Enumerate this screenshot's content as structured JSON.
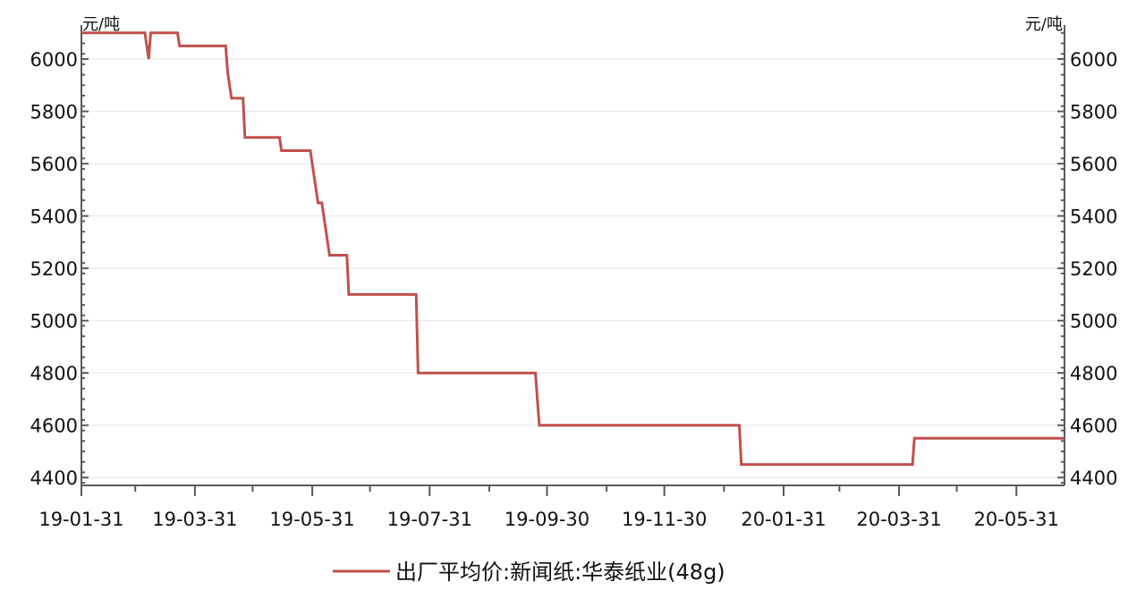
{
  "chart_data": {
    "type": "line",
    "step": true,
    "unit_left": "元/吨",
    "unit_right": "元/吨",
    "ylim": [
      4370,
      6130
    ],
    "y_ticks": [
      4400,
      4600,
      4800,
      5000,
      5200,
      5400,
      5600,
      5800,
      6000
    ],
    "y_tick_labels": [
      "4400",
      "4600",
      "4800",
      "5000",
      "5200",
      "5400",
      "5600",
      "5800",
      "6000"
    ],
    "xlim": [
      "2019-01-31",
      "2020-06-25"
    ],
    "x_ticks": [
      "2019-01-31",
      "2019-03-31",
      "2019-05-31",
      "2019-07-31",
      "2019-09-30",
      "2019-11-30",
      "2020-01-31",
      "2020-03-31",
      "2020-05-31"
    ],
    "x_tick_labels": [
      "19-01-31",
      "19-03-31",
      "19-05-31",
      "19-07-31",
      "19-09-30",
      "19-11-30",
      "20-01-31",
      "20-03-31",
      "20-05-31"
    ],
    "grid": {
      "horizontal": true,
      "vertical": false
    },
    "legend_position": "bottom-center",
    "series": [
      {
        "name": "出厂平均价:新闻纸:华泰纸业(48g)",
        "color": "#c0504d",
        "points": [
          [
            "2019-01-31",
            6100
          ],
          [
            "2019-03-05",
            6100
          ],
          [
            "2019-03-06",
            6050
          ],
          [
            "2019-03-07",
            6000
          ],
          [
            "2019-03-08",
            6100
          ],
          [
            "2019-03-22",
            6100
          ],
          [
            "2019-03-23",
            6050
          ],
          [
            "2019-04-16",
            6050
          ],
          [
            "2019-04-17",
            5950
          ],
          [
            "2019-04-19",
            5850
          ],
          [
            "2019-04-25",
            5850
          ],
          [
            "2019-04-26",
            5700
          ],
          [
            "2019-05-14",
            5700
          ],
          [
            "2019-05-15",
            5650
          ],
          [
            "2019-05-30",
            5650
          ],
          [
            "2019-06-01",
            5550
          ],
          [
            "2019-06-03",
            5450
          ],
          [
            "2019-06-05",
            5450
          ],
          [
            "2019-06-07",
            5350
          ],
          [
            "2019-06-09",
            5250
          ],
          [
            "2019-06-18",
            5250
          ],
          [
            "2019-06-19",
            5100
          ],
          [
            "2019-07-24",
            5100
          ],
          [
            "2019-07-25",
            4800
          ],
          [
            "2019-09-24",
            4800
          ],
          [
            "2019-09-25",
            4700
          ],
          [
            "2019-09-26",
            4600
          ],
          [
            "2020-01-08",
            4600
          ],
          [
            "2020-01-09",
            4450
          ],
          [
            "2020-04-07",
            4450
          ],
          [
            "2020-04-08",
            4550
          ],
          [
            "2020-06-25",
            4550
          ]
        ]
      }
    ]
  }
}
